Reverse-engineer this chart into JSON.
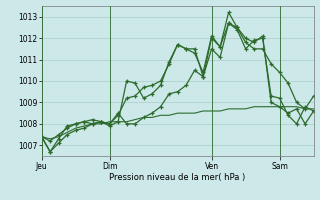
{
  "bg_color": "#cce8e8",
  "grid_color": "#aacccc",
  "line_color": "#2d6b2d",
  "xlabel": "Pression niveau de la mer( hPa )",
  "ylim": [
    1006.5,
    1013.5
  ],
  "yticks": [
    1007,
    1008,
    1009,
    1010,
    1011,
    1012,
    1013
  ],
  "day_labels": [
    "Jeu",
    "Dim",
    "Ven",
    "Sam"
  ],
  "day_positions": [
    0,
    8,
    20,
    28
  ],
  "line1": [
    1007.4,
    1006.7,
    1007.1,
    1007.5,
    1007.7,
    1007.8,
    1008.0,
    1008.1,
    1008.0,
    1008.4,
    1009.2,
    1009.3,
    1009.7,
    1009.8,
    1010.0,
    1010.8,
    1011.7,
    1011.5,
    1011.3,
    1010.4,
    1012.1,
    1011.6,
    1013.2,
    1012.5,
    1012.0,
    1011.8,
    1012.1,
    1009.0,
    1008.8,
    1008.5,
    1008.7,
    1008.0,
    1008.6
  ],
  "line2": [
    1007.4,
    1006.7,
    1007.3,
    1007.9,
    1008.0,
    1008.1,
    1008.0,
    1008.1,
    1007.9,
    1008.1,
    1010.0,
    1009.9,
    1009.2,
    1009.4,
    1009.8,
    1010.9,
    1011.7,
    1011.5,
    1011.5,
    1010.2,
    1012.0,
    1011.6,
    1012.7,
    1012.4,
    1011.5,
    1011.9,
    1012.0,
    1009.3,
    1009.2,
    1008.4,
    1008.0,
    1008.8,
    1008.6
  ],
  "line3": [
    1007.4,
    1007.2,
    1007.5,
    1007.8,
    1008.0,
    1008.1,
    1008.2,
    1008.1,
    1008.0,
    1008.5,
    1008.0,
    1008.0,
    1008.3,
    1008.5,
    1008.8,
    1009.4,
    1009.5,
    1009.8,
    1010.5,
    1010.2,
    1011.5,
    1011.1,
    1012.7,
    1012.5,
    1011.8,
    1011.5,
    1011.5,
    1010.8,
    1010.4,
    1009.9,
    1009.0,
    1008.7,
    1009.3
  ],
  "line4": [
    1007.4,
    1007.3,
    1007.4,
    1007.6,
    1007.8,
    1007.9,
    1008.0,
    1008.0,
    1008.1,
    1008.1,
    1008.1,
    1008.2,
    1008.3,
    1008.3,
    1008.4,
    1008.4,
    1008.5,
    1008.5,
    1008.5,
    1008.6,
    1008.6,
    1008.6,
    1008.7,
    1008.7,
    1008.7,
    1008.8,
    1008.8,
    1008.8,
    1008.8,
    1008.8,
    1008.8,
    1008.7,
    1008.7
  ],
  "figsize": [
    3.2,
    2.0
  ],
  "dpi": 100
}
